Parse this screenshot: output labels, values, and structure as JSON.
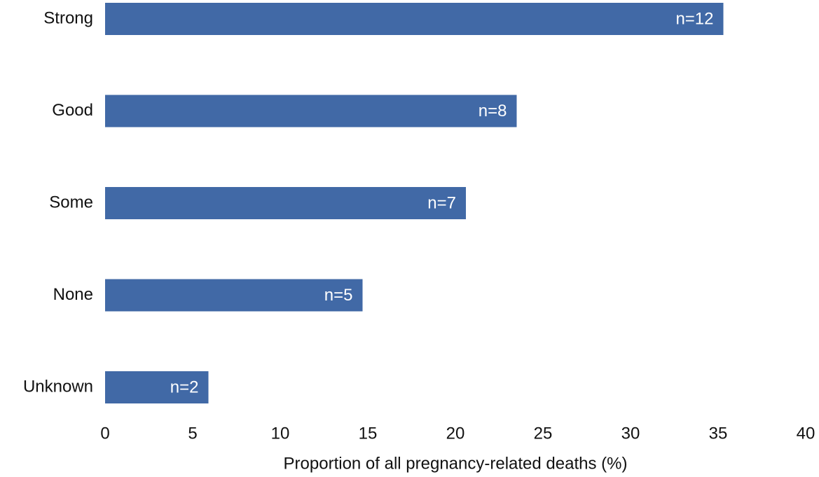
{
  "chart_data": {
    "type": "bar",
    "orientation": "horizontal",
    "categories": [
      "Strong",
      "Good",
      "Some",
      "None",
      "Unknown"
    ],
    "values": [
      35.3,
      23.5,
      20.6,
      14.7,
      5.9
    ],
    "bar_labels": [
      "n=12",
      "n=8",
      "n=7",
      "n=5",
      "n=2"
    ],
    "color": "#4169a6",
    "xlim": [
      0,
      40
    ],
    "xticks": [
      0,
      5,
      10,
      15,
      20,
      25,
      30,
      35,
      40
    ],
    "x_label": "Proportion of all pregnancy-related deaths (%)",
    "grid": false
  }
}
